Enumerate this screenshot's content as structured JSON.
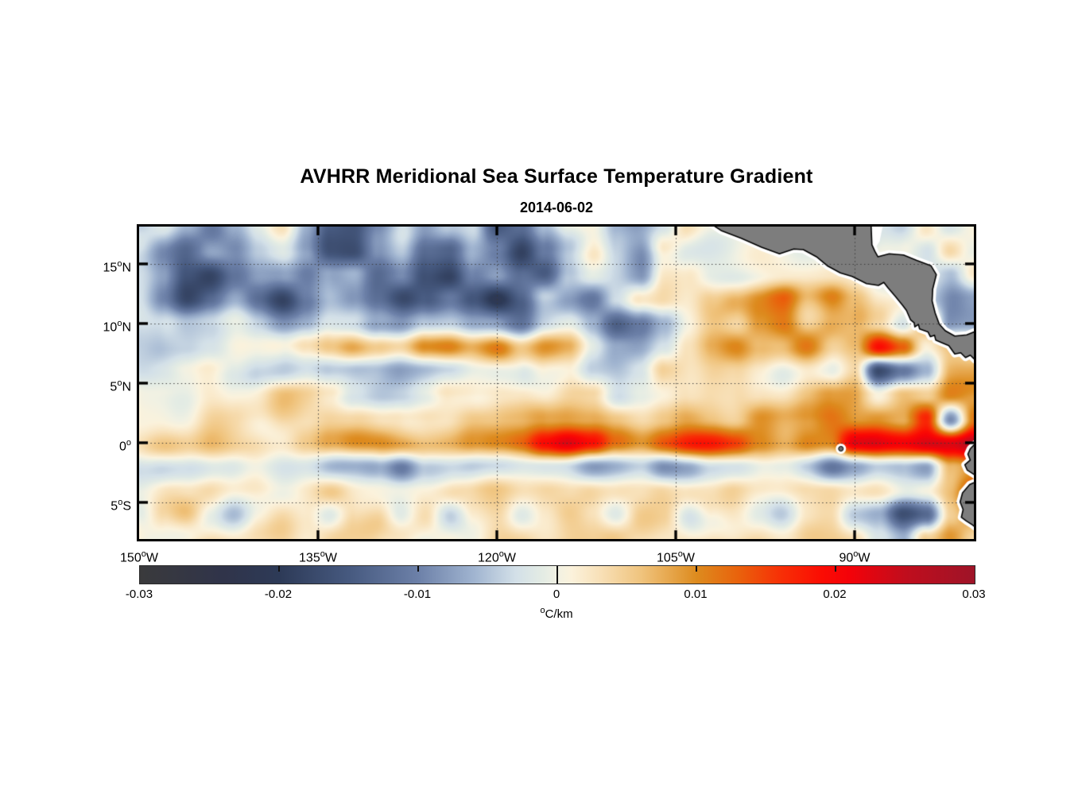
{
  "header": {
    "title": "AVHRR Meridional Sea Surface Temperature Gradient",
    "subtitle": "2014-06-02"
  },
  "chart_data": {
    "type": "heatmap",
    "title": "AVHRR Meridional Sea Surface Temperature Gradient",
    "subtitle": "2014-06-02",
    "value_units": "°C/km",
    "lon_range_deg_east": [
      -150,
      -80
    ],
    "lat_range_deg_north": [
      -8.07,
      18.13
    ],
    "grid_on": true,
    "x_axis": {
      "ticks": [
        {
          "value": -150,
          "label": "150°W",
          "gridline": false
        },
        {
          "value": -135,
          "label": "135°W",
          "gridline": true
        },
        {
          "value": -120,
          "label": "120°W",
          "gridline": true
        },
        {
          "value": -105,
          "label": "105°W",
          "gridline": true
        },
        {
          "value": -90,
          "label": "90°W",
          "gridline": true
        }
      ]
    },
    "y_axis": {
      "ticks": [
        {
          "value": 15,
          "label": "15°N"
        },
        {
          "value": 10,
          "label": "10°N"
        },
        {
          "value": 5,
          "label": "5°N"
        },
        {
          "value": 0,
          "label": "0°"
        },
        {
          "value": -5,
          "label": "5°S"
        }
      ]
    },
    "colorbar": {
      "min": -0.03,
      "max": 0.03,
      "ticks": [
        {
          "value": -0.03,
          "label": "-0.03"
        },
        {
          "value": -0.02,
          "label": "-0.02"
        },
        {
          "value": -0.01,
          "label": "-0.01"
        },
        {
          "value": 0,
          "label": "0"
        },
        {
          "value": 0.01,
          "label": "0.01"
        },
        {
          "value": 0.02,
          "label": "0.02"
        },
        {
          "value": 0.03,
          "label": "0.03"
        }
      ],
      "unit_label": "°C/km"
    },
    "colormap_stops_value_color": [
      [
        -30,
        "#3a3a3c"
      ],
      [
        -24,
        "#30344a"
      ],
      [
        -20,
        "#2d3a57"
      ],
      [
        -15,
        "#46597f"
      ],
      [
        -10,
        "#6c80a8"
      ],
      [
        -6,
        "#a0b4d0"
      ],
      [
        -3,
        "#d3e0e8"
      ],
      [
        -1,
        "#e4ece4"
      ],
      [
        0,
        "#f1f1e3"
      ],
      [
        1,
        "#fbf2dc"
      ],
      [
        3,
        "#f8e1b9"
      ],
      [
        6,
        "#f0c47e"
      ],
      [
        10,
        "#dd8b1e"
      ],
      [
        13,
        "#e9620c"
      ],
      [
        16,
        "#f73006"
      ],
      [
        19,
        "#fb0c03"
      ],
      [
        21,
        "#f40209"
      ],
      [
        25,
        "#c00d1d"
      ],
      [
        30,
        "#9e1428"
      ]
    ],
    "land_color": "#7d7d7d",
    "coast_halo_color": "#ffffff",
    "field_grid": {
      "comment": "gradient values in 0.001 °C/km, 14 rows (lat 18.1N -> 8.1S) x 36 cols (lon 150W -> 80W)",
      "value_scale": 0.001,
      "cols": 36,
      "rows": 14,
      "values": [
        [
          -5,
          -3,
          -8,
          -12,
          -6,
          -2,
          2,
          -5,
          -12,
          -14,
          -8,
          -3,
          -10,
          -6,
          -3,
          -16,
          -14,
          -5,
          1,
          3,
          -3,
          -6,
          -4,
          2,
          0,
          0,
          0,
          0,
          0,
          0,
          0,
          0,
          -4,
          2,
          -3,
          -1
        ],
        [
          -4,
          -8,
          -12,
          -8,
          -10,
          -5,
          -3,
          -8,
          -16,
          -18,
          -10,
          -5,
          -14,
          -16,
          -7,
          -10,
          -18,
          -8,
          -2,
          2,
          -5,
          -8,
          3,
          0,
          0,
          0,
          0,
          0,
          0,
          0,
          0,
          0,
          -2,
          -5,
          3,
          -2
        ],
        [
          -2,
          -6,
          -14,
          -18,
          -12,
          -8,
          -10,
          -14,
          -8,
          -5,
          -12,
          -8,
          -16,
          -20,
          -10,
          -6,
          -12,
          -16,
          -6,
          -2,
          -4,
          -6,
          5,
          3,
          0,
          0,
          0,
          0,
          0,
          0,
          0,
          0,
          0,
          -3,
          -6,
          2
        ],
        [
          -3,
          -9,
          -16,
          -12,
          -8,
          -13,
          -18,
          -11,
          -6,
          -9,
          -14,
          -18,
          -12,
          -8,
          -14,
          -20,
          -14,
          -6,
          -9,
          -12,
          -5,
          1,
          4,
          2,
          5,
          8,
          10,
          12,
          6,
          10,
          4,
          0,
          0,
          -4,
          -8,
          -4
        ],
        [
          -1,
          -3,
          -6,
          -5,
          -3,
          -6,
          -9,
          -7,
          -3,
          -2,
          -6,
          -9,
          -5,
          -4,
          -7,
          -6,
          -9,
          -3,
          -2,
          -6,
          -13,
          -9,
          -3,
          2,
          4,
          2,
          8,
          10,
          4,
          8,
          6,
          2,
          -3,
          8,
          -10,
          -8
        ],
        [
          -2,
          -4,
          -4,
          -2,
          0,
          -2,
          -1,
          3,
          6,
          10,
          8,
          5,
          10,
          12,
          8,
          10,
          4,
          8,
          6,
          0,
          -4,
          -6,
          -2,
          4,
          8,
          10,
          6,
          4,
          8,
          4,
          8,
          20,
          14,
          2,
          6,
          4
        ],
        [
          -2,
          -1,
          0,
          2,
          0,
          -3,
          -4,
          -2,
          -5,
          -6,
          -4,
          -6,
          -6,
          -5,
          -3,
          -4,
          -3,
          2,
          2,
          -4,
          -5,
          -3,
          4,
          4,
          6,
          4,
          2,
          0,
          2,
          0,
          6,
          -16,
          -10,
          -4,
          8,
          6
        ],
        [
          1,
          2,
          1,
          3,
          2,
          1,
          3,
          2,
          1,
          -3,
          -4,
          -3,
          -2,
          1,
          2,
          3,
          2,
          1,
          3,
          2,
          -3,
          1,
          2,
          4,
          6,
          5,
          3,
          2,
          4,
          6,
          8,
          2,
          6,
          4,
          10,
          8
        ],
        [
          2,
          3,
          2,
          4,
          3,
          2,
          4,
          3,
          5,
          4,
          3,
          5,
          6,
          4,
          6,
          5,
          4,
          6,
          8,
          7,
          5,
          4,
          6,
          8,
          7,
          5,
          8,
          6,
          8,
          10,
          8,
          10,
          8,
          18,
          -6,
          14
        ],
        [
          3,
          4,
          3,
          5,
          4,
          5,
          4,
          6,
          9,
          11,
          10,
          9,
          8,
          8,
          10,
          12,
          13,
          18,
          22,
          19,
          12,
          10,
          14,
          15,
          15,
          14,
          10,
          8,
          12,
          10,
          20,
          22,
          22,
          24,
          24,
          28
        ],
        [
          -2,
          -4,
          -3,
          -2,
          -4,
          -2,
          -3,
          -2,
          -4,
          -3,
          -5,
          -11,
          -4,
          -3,
          -5,
          -4,
          -3,
          -4,
          -3,
          -5,
          -4,
          -3,
          -8,
          -7,
          -4,
          -3,
          -2,
          -4,
          -6,
          -10,
          -6,
          -3,
          -4,
          -8,
          6,
          10
        ],
        [
          2,
          3,
          2,
          4,
          2,
          3,
          2,
          3,
          4,
          2,
          3,
          2,
          3,
          4,
          2,
          3,
          2,
          3,
          2,
          4,
          3,
          2,
          4,
          3,
          2,
          4,
          3,
          2,
          3,
          4,
          2,
          3,
          2,
          4,
          8,
          16
        ],
        [
          -2,
          3,
          6,
          2,
          -2,
          2,
          4,
          2,
          -3,
          2,
          4,
          -2,
          2,
          -4,
          2,
          3,
          -2,
          2,
          4,
          2,
          -2,
          3,
          2,
          -3,
          2,
          4,
          2,
          -2,
          2,
          3,
          -4,
          -6,
          -16,
          -12,
          4,
          8
        ],
        [
          2,
          3,
          2,
          3,
          2,
          3,
          4,
          2,
          3,
          2,
          3,
          4,
          2,
          3,
          2,
          4,
          3,
          2,
          3,
          2,
          4,
          3,
          2,
          3,
          4,
          2,
          3,
          2,
          4,
          3,
          2,
          -4,
          -8,
          6,
          12,
          6
        ]
      ]
    },
    "land_polygons_lon_lat": {
      "central_america": [
        [
          -103.0,
          19.0
        ],
        [
          -101.2,
          17.8
        ],
        [
          -99.5,
          17.15
        ],
        [
          -97.8,
          16.4
        ],
        [
          -96.3,
          15.85
        ],
        [
          -95.1,
          16.25
        ],
        [
          -94.3,
          16.2
        ],
        [
          -93.2,
          15.6
        ],
        [
          -92.3,
          14.85
        ],
        [
          -91.2,
          14.25
        ],
        [
          -90.2,
          13.95
        ],
        [
          -89.0,
          13.35
        ],
        [
          -88.0,
          13.2
        ],
        [
          -87.55,
          13.45
        ],
        [
          -87.2,
          13.0
        ],
        [
          -86.6,
          12.3
        ],
        [
          -85.95,
          11.5
        ],
        [
          -85.65,
          11.1
        ],
        [
          -85.3,
          10.3
        ],
        [
          -85.0,
          10.05
        ],
        [
          -84.95,
          9.72
        ],
        [
          -84.65,
          9.92
        ],
        [
          -84.55,
          9.55
        ],
        [
          -83.85,
          9.3
        ],
        [
          -83.65,
          8.9
        ],
        [
          -83.3,
          9.02
        ],
        [
          -83.2,
          8.62
        ],
        [
          -82.7,
          8.4
        ],
        [
          -82.1,
          8.15
        ],
        [
          -81.6,
          7.45
        ],
        [
          -81.1,
          7.55
        ],
        [
          -80.7,
          7.15
        ],
        [
          -80.3,
          7.35
        ],
        [
          -79.9,
          6.95
        ],
        [
          -79.4,
          7.6
        ],
        [
          -79.2,
          9.6
        ],
        [
          -80.6,
          9.05
        ],
        [
          -81.6,
          8.95
        ],
        [
          -82.4,
          9.4
        ],
        [
          -82.9,
          9.95
        ],
        [
          -83.25,
          10.9
        ],
        [
          -83.5,
          11.9
        ],
        [
          -83.45,
          12.9
        ],
        [
          -83.15,
          14.1
        ],
        [
          -83.6,
          14.85
        ],
        [
          -84.8,
          15.3
        ],
        [
          -85.9,
          15.75
        ],
        [
          -87.1,
          15.85
        ],
        [
          -88.05,
          15.6
        ],
        [
          -88.3,
          16.05
        ],
        [
          -88.55,
          16.6
        ],
        [
          -88.65,
          19.0
        ]
      ],
      "south_america": [
        [
          -79.0,
          0.3
        ],
        [
          -79.9,
          -0.1
        ],
        [
          -80.3,
          -0.5
        ],
        [
          -80.5,
          -0.95
        ],
        [
          -80.3,
          -1.45
        ],
        [
          -80.75,
          -1.85
        ],
        [
          -80.55,
          -2.3
        ],
        [
          -80.0,
          -2.65
        ],
        [
          -79.4,
          -3.1
        ],
        [
          -80.35,
          -3.5
        ],
        [
          -80.95,
          -4.2
        ],
        [
          -81.15,
          -4.95
        ],
        [
          -80.9,
          -5.6
        ],
        [
          -81.05,
          -6.25
        ],
        [
          -80.65,
          -6.55
        ],
        [
          -80.1,
          -6.9
        ],
        [
          -79.6,
          -7.3
        ],
        [
          -79.0,
          -7.6
        ]
      ],
      "belize_inlet_white_patch": [
        [
          -88.6,
          18.6
        ],
        [
          -87.55,
          18.6
        ],
        [
          -87.9,
          16.9
        ],
        [
          -88.35,
          16.2
        ],
        [
          -88.6,
          16.6
        ]
      ],
      "galapagos_island_lon_lat": [
        -91.15,
        -0.5
      ]
    }
  }
}
